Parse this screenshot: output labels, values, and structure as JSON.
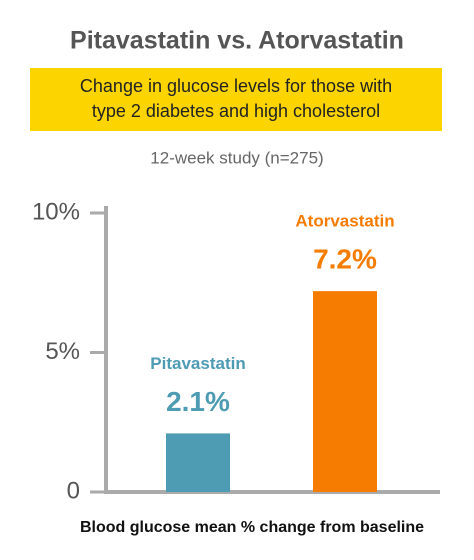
{
  "chart_data": {
    "type": "bar",
    "title": "Pitavastatin vs. Atorvastatin",
    "subtitle": [
      "Change in glucose levels for those with",
      "type 2 diabetes and high cholesterol"
    ],
    "note": "12-week study (n=275)",
    "x_label": "Blood glucose mean % change from baseline",
    "categories": [
      "Pitavastatin",
      "Atorvastatin"
    ],
    "values": [
      2.1,
      7.2
    ],
    "value_labels": [
      "2.1%",
      "7.2%"
    ],
    "colors": [
      "#4e9bb4",
      "#f57c00"
    ],
    "ylim": [
      0,
      10
    ],
    "yticks": [
      0,
      {
        "value": 5,
        "label": "5%"
      },
      {
        "value": 10,
        "label": "10%"
      }
    ]
  }
}
